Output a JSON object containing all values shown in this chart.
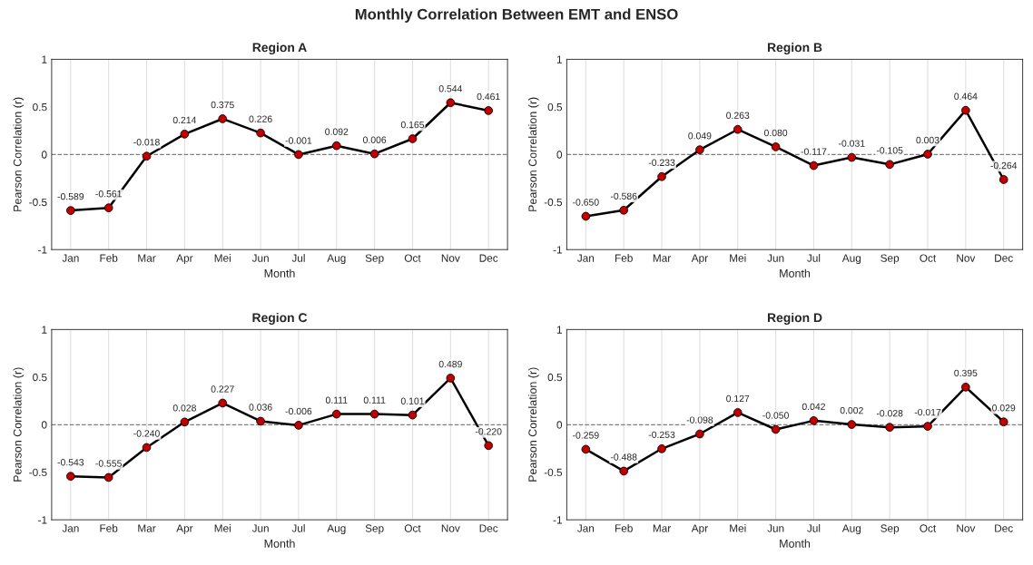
{
  "chart_data": [
    {
      "type": "line",
      "title": "Region A",
      "xlabel": "Month",
      "ylabel": "Pearson Correlation (r)",
      "annotations": [
        "Monthly Correlation Between EMT and ENSO"
      ],
      "categories": [
        "Jan",
        "Feb",
        "Mar",
        "Apr",
        "Mei",
        "Jun",
        "Jul",
        "Aug",
        "Sep",
        "Oct",
        "Nov",
        "Dec"
      ],
      "series": [
        {
          "color": "#c00000",
          "values": [
            -0.589,
            -0.561,
            -0.018,
            0.214,
            0.375,
            0.226,
            -0.001,
            0.092,
            0.006,
            0.165,
            0.544,
            0.461
          ],
          "value_labels": [
            "-0.589",
            "-0.561",
            "-0.018",
            "0.214",
            "0.375",
            "0.226",
            "-0.001",
            "0.092",
            "0.006",
            "0.165",
            "0.544",
            "0.461"
          ]
        }
      ],
      "ylim": [
        -1,
        1
      ],
      "yticks": [
        -1,
        -0.5,
        0,
        0.5,
        1
      ],
      "ref_lines": [
        {
          "axis": "y",
          "value": 0,
          "color": "#808080",
          "line_style": "dashed"
        }
      ],
      "grid": "x",
      "marker": "circle",
      "line_style": "solid"
    },
    {
      "type": "line",
      "title": "Region B",
      "xlabel": "Month",
      "ylabel": "Pearson Correlation (r)",
      "categories": [
        "Jan",
        "Feb",
        "Mar",
        "Apr",
        "Mei",
        "Jun",
        "Jul",
        "Aug",
        "Sep",
        "Oct",
        "Nov",
        "Dec"
      ],
      "series": [
        {
          "color": "#c00000",
          "values": [
            -0.65,
            -0.586,
            -0.233,
            0.049,
            0.263,
            0.08,
            -0.117,
            -0.031,
            -0.105,
            0.003,
            0.464,
            -0.264
          ],
          "value_labels": [
            "-0.650",
            "-0.586",
            "-0.233",
            "0.049",
            "0.263",
            "0.080",
            "-0.117",
            "-0.031",
            "-0.105",
            "0.003",
            "0.464",
            "-0.264"
          ]
        }
      ],
      "ylim": [
        -1,
        1
      ],
      "yticks": [
        -1,
        -0.5,
        0,
        0.5,
        1
      ],
      "ref_lines": [
        {
          "axis": "y",
          "value": 0,
          "color": "#808080",
          "line_style": "dashed"
        }
      ],
      "grid": "x",
      "marker": "circle",
      "line_style": "solid"
    },
    {
      "type": "line",
      "title": "Region C",
      "xlabel": "Month",
      "ylabel": "Pearson Correlation (r)",
      "categories": [
        "Jan",
        "Feb",
        "Mar",
        "Apr",
        "Mei",
        "Jun",
        "Jul",
        "Aug",
        "Sep",
        "Oct",
        "Nov",
        "Dec"
      ],
      "series": [
        {
          "color": "#c00000",
          "values": [
            -0.543,
            -0.555,
            -0.24,
            0.028,
            0.227,
            0.036,
            -0.006,
            0.111,
            0.111,
            0.101,
            0.489,
            -0.22
          ],
          "value_labels": [
            "-0.543",
            "-0.555",
            "-0.240",
            "0.028",
            "0.227",
            "0.036",
            "-0.006",
            "0.111",
            "0.111",
            "0.101",
            "0.489",
            "-0.220"
          ]
        }
      ],
      "ylim": [
        -1,
        1
      ],
      "yticks": [
        -1,
        -0.5,
        0,
        0.5,
        1
      ],
      "ref_lines": [
        {
          "axis": "y",
          "value": 0,
          "color": "#808080",
          "line_style": "dashed"
        }
      ],
      "grid": "x",
      "marker": "circle",
      "line_style": "solid"
    },
    {
      "type": "line",
      "title": "Region D",
      "xlabel": "Month",
      "ylabel": "Pearson Correlation (r)",
      "categories": [
        "Jan",
        "Feb",
        "Mar",
        "Apr",
        "Mei",
        "Jun",
        "Jul",
        "Aug",
        "Sep",
        "Oct",
        "Nov",
        "Dec"
      ],
      "series": [
        {
          "color": "#c00000",
          "values": [
            -0.259,
            -0.488,
            -0.253,
            -0.098,
            0.127,
            -0.05,
            0.042,
            0.002,
            -0.028,
            -0.017,
            0.395,
            0.029
          ],
          "value_labels": [
            "-0.259",
            "-0.488",
            "-0.253",
            "-0.098",
            "0.127",
            "-0.050",
            "0.042",
            "0.002",
            "-0.028",
            "-0.017",
            "0.395",
            "0.029"
          ]
        }
      ],
      "ylim": [
        -1,
        1
      ],
      "yticks": [
        -1,
        -0.5,
        0,
        0.5,
        1
      ],
      "ref_lines": [
        {
          "axis": "y",
          "value": 0,
          "color": "#808080",
          "line_style": "dashed"
        }
      ],
      "grid": "x",
      "marker": "circle",
      "line_style": "solid"
    }
  ]
}
